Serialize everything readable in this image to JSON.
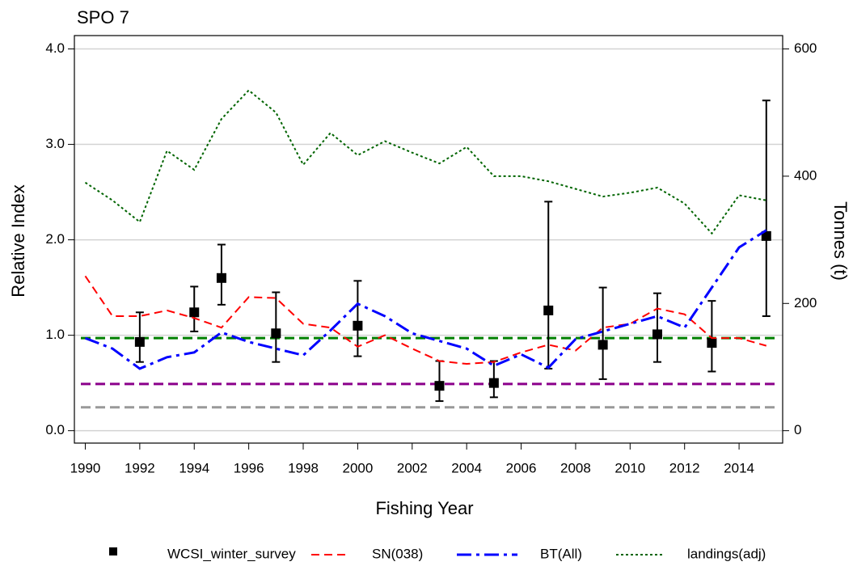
{
  "chart_data": {
    "type": "line",
    "title": "SPO 7",
    "xlabel": "Fishing Year",
    "ylabel": "Relative Index",
    "y2label": "Tonnes (t)",
    "x": [
      1990,
      1991,
      1992,
      1993,
      1994,
      1995,
      1996,
      1997,
      1998,
      1999,
      2000,
      2001,
      2002,
      2003,
      2004,
      2005,
      2006,
      2007,
      2008,
      2009,
      2010,
      2011,
      2012,
      2013,
      2014,
      2015
    ],
    "xlim": [
      1989.6,
      2015.6
    ],
    "xticks": [
      1990,
      1992,
      1994,
      1996,
      1998,
      2000,
      2002,
      2004,
      2006,
      2008,
      2010,
      2012,
      2014
    ],
    "ylim": [
      -0.13,
      4.14
    ],
    "yticks": [
      {
        "value": 0,
        "label": "0.0"
      },
      {
        "value": 1,
        "label": "1.0"
      },
      {
        "value": 2,
        "label": "2.0"
      },
      {
        "value": 3,
        "label": "3.0"
      },
      {
        "value": 4,
        "label": "4.0"
      }
    ],
    "y2lim": [
      -19.5,
      621
    ],
    "y2ticks": [
      0,
      200,
      400,
      600
    ],
    "grid": true,
    "series": [
      {
        "name": "WCSI_winter_survey",
        "color": "#000000",
        "marker": "square",
        "x": [
          1992,
          1994,
          1995,
          1997,
          2000,
          2003,
          2005,
          2007,
          2009,
          2011,
          2013,
          2015
        ],
        "values": [
          0.93,
          1.24,
          1.6,
          1.02,
          1.1,
          0.47,
          0.5,
          1.26,
          0.9,
          1.01,
          0.92,
          2.04
        ],
        "lower": [
          0.72,
          1.04,
          1.32,
          0.72,
          0.78,
          0.31,
          0.35,
          0.65,
          0.54,
          0.72,
          0.62,
          1.2
        ],
        "upper": [
          1.24,
          1.51,
          1.95,
          1.45,
          1.57,
          0.73,
          0.73,
          2.4,
          1.5,
          1.44,
          1.36,
          3.46
        ]
      },
      {
        "name": "SN(038)",
        "color": "#ff0000",
        "line_style": "dashed",
        "values": [
          1.62,
          1.2,
          1.2,
          1.26,
          1.18,
          1.08,
          1.4,
          1.39,
          1.12,
          1.08,
          0.88,
          1.0,
          0.86,
          0.73,
          0.7,
          0.72,
          0.82,
          0.9,
          0.84,
          1.08,
          1.12,
          1.28,
          1.22,
          0.97,
          0.97,
          0.89
        ]
      },
      {
        "name": "BT(All)",
        "color": "#0000ff",
        "line_style": "dashdot",
        "values": [
          0.97,
          0.86,
          0.65,
          0.77,
          0.82,
          1.03,
          0.93,
          0.86,
          0.79,
          1.05,
          1.33,
          1.2,
          1.02,
          0.94,
          0.86,
          0.68,
          0.8,
          0.66,
          0.96,
          1.04,
          1.12,
          1.2,
          1.08,
          1.5,
          1.92,
          2.1
        ]
      },
      {
        "name": "landings(adj)",
        "color": "#006400",
        "line_style": "dotted",
        "axis": "y2",
        "values": [
          390,
          362,
          328,
          440,
          410,
          490,
          535,
          500,
          418,
          468,
          433,
          455,
          437,
          420,
          446,
          400,
          400,
          392,
          380,
          368,
          374,
          382,
          357,
          310,
          370,
          362
        ]
      }
    ],
    "reference_lines": [
      {
        "value": 0.97,
        "color": "#008000"
      },
      {
        "value": 0.49,
        "color": "#8b008b"
      },
      {
        "value": 0.245,
        "color": "#999999"
      }
    ]
  }
}
